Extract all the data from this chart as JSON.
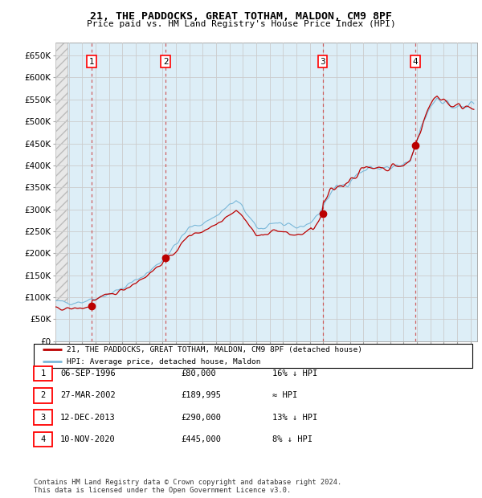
{
  "title": "21, THE PADDOCKS, GREAT TOTHAM, MALDON, CM9 8PF",
  "subtitle": "Price paid vs. HM Land Registry's House Price Index (HPI)",
  "ylim": [
    0,
    680000
  ],
  "yticks": [
    0,
    50000,
    100000,
    150000,
    200000,
    250000,
    300000,
    350000,
    400000,
    450000,
    500000,
    550000,
    600000,
    650000
  ],
  "ytick_labels": [
    "£0",
    "£50K",
    "£100K",
    "£150K",
    "£200K",
    "£250K",
    "£300K",
    "£350K",
    "£400K",
    "£450K",
    "£500K",
    "£550K",
    "£600K",
    "£650K"
  ],
  "xlim_start": 1994.0,
  "xlim_end": 2025.5,
  "hpi_color": "#7ab8d9",
  "hpi_fill_color": "#ddeef7",
  "price_color": "#bb0000",
  "sale_marker_color": "#bb0000",
  "vline_color": "#cc4444",
  "grid_color": "#cccccc",
  "sale_points": [
    {
      "year": 1996.69,
      "price": 80000,
      "label": "1"
    },
    {
      "year": 2002.24,
      "price": 189995,
      "label": "2"
    },
    {
      "year": 2013.95,
      "price": 290000,
      "label": "3"
    },
    {
      "year": 2020.87,
      "price": 445000,
      "label": "4"
    }
  ],
  "table_entries": [
    {
      "num": "1",
      "date": "06-SEP-1996",
      "price": "£80,000",
      "pct": "16% ↓ HPI"
    },
    {
      "num": "2",
      "date": "27-MAR-2002",
      "price": "£189,995",
      "pct": "≈ HPI"
    },
    {
      "num": "3",
      "date": "12-DEC-2013",
      "price": "£290,000",
      "pct": "13% ↓ HPI"
    },
    {
      "num": "4",
      "date": "10-NOV-2020",
      "price": "£445,000",
      "pct": "8% ↓ HPI"
    }
  ],
  "legend_line1": "21, THE PADDOCKS, GREAT TOTHAM, MALDON, CM9 8PF (detached house)",
  "legend_line2": "HPI: Average price, detached house, Maldon",
  "footer": "Contains HM Land Registry data © Crown copyright and database right 2024.\nThis data is licensed under the Open Government Licence v3.0."
}
